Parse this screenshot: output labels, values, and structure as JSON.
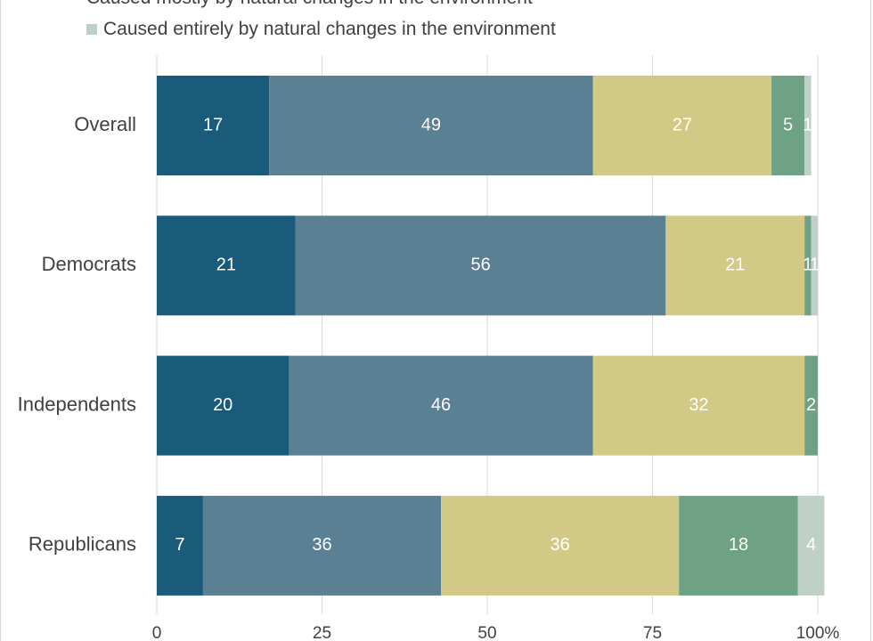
{
  "legend": {
    "cut_off_label": "Caused mostly by natural changes in the environment",
    "visible_label": "Caused entirely by natural changes in the environment",
    "visible_color": "#bfd1c6"
  },
  "chart_data": {
    "type": "bar",
    "orientation": "horizontal",
    "stacked": true,
    "categories": [
      "Overall",
      "Democrats",
      "Independents",
      "Republicans"
    ],
    "series": [
      {
        "values": [
          17,
          21,
          20,
          7
        ],
        "color": "#1a5a7a"
      },
      {
        "values": [
          49,
          56,
          46,
          36
        ],
        "color": "#5b7f93"
      },
      {
        "values": [
          27,
          21,
          32,
          36
        ],
        "color": "#d2c986"
      },
      {
        "values": [
          5,
          1,
          2,
          18
        ],
        "color": "#6fa184"
      },
      {
        "name": "Caused entirely by natural changes in the environment",
        "values": [
          1,
          1,
          0,
          4
        ],
        "color": "#bfd1c6"
      }
    ],
    "xlim": [
      0,
      100
    ],
    "xticks": [
      "0",
      "25",
      "50",
      "75",
      "100%"
    ],
    "grid": "vertical",
    "legend_position": "top"
  }
}
